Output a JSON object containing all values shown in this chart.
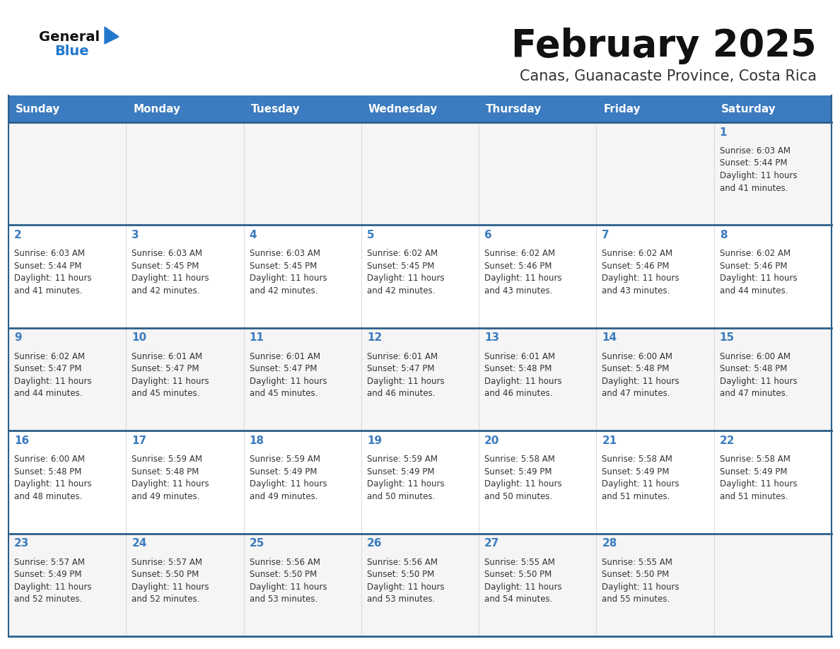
{
  "title": "February 2025",
  "subtitle": "Canas, Guanacaste Province, Costa Rica",
  "days_of_week": [
    "Sunday",
    "Monday",
    "Tuesday",
    "Wednesday",
    "Thursday",
    "Friday",
    "Saturday"
  ],
  "header_bg": "#3b7bbf",
  "header_text": "#ffffff",
  "cell_bg": "#f5f5f5",
  "cell_bg_white": "#ffffff",
  "day_number_color": "#3b7bbf",
  "info_text_color": "#333333",
  "row_separator_color": "#2c5f8a",
  "col_separator_color": "#cccccc",
  "title_color": "#111111",
  "subtitle_color": "#333333",
  "logo_general_color": "#111111",
  "logo_blue_color": "#2277cc",
  "logo_triangle_color": "#2277cc",
  "calendar_data": [
    [
      {
        "day": null,
        "sunrise": null,
        "sunset": null,
        "daylight": null
      },
      {
        "day": null,
        "sunrise": null,
        "sunset": null,
        "daylight": null
      },
      {
        "day": null,
        "sunrise": null,
        "sunset": null,
        "daylight": null
      },
      {
        "day": null,
        "sunrise": null,
        "sunset": null,
        "daylight": null
      },
      {
        "day": null,
        "sunrise": null,
        "sunset": null,
        "daylight": null
      },
      {
        "day": null,
        "sunrise": null,
        "sunset": null,
        "daylight": null
      },
      {
        "day": 1,
        "sunrise": "6:03 AM",
        "sunset": "5:44 PM",
        "daylight": "11 hours and 41 minutes."
      }
    ],
    [
      {
        "day": 2,
        "sunrise": "6:03 AM",
        "sunset": "5:44 PM",
        "daylight": "11 hours and 41 minutes."
      },
      {
        "day": 3,
        "sunrise": "6:03 AM",
        "sunset": "5:45 PM",
        "daylight": "11 hours and 42 minutes."
      },
      {
        "day": 4,
        "sunrise": "6:03 AM",
        "sunset": "5:45 PM",
        "daylight": "11 hours and 42 minutes."
      },
      {
        "day": 5,
        "sunrise": "6:02 AM",
        "sunset": "5:45 PM",
        "daylight": "11 hours and 42 minutes."
      },
      {
        "day": 6,
        "sunrise": "6:02 AM",
        "sunset": "5:46 PM",
        "daylight": "11 hours and 43 minutes."
      },
      {
        "day": 7,
        "sunrise": "6:02 AM",
        "sunset": "5:46 PM",
        "daylight": "11 hours and 43 minutes."
      },
      {
        "day": 8,
        "sunrise": "6:02 AM",
        "sunset": "5:46 PM",
        "daylight": "11 hours and 44 minutes."
      }
    ],
    [
      {
        "day": 9,
        "sunrise": "6:02 AM",
        "sunset": "5:47 PM",
        "daylight": "11 hours and 44 minutes."
      },
      {
        "day": 10,
        "sunrise": "6:01 AM",
        "sunset": "5:47 PM",
        "daylight": "11 hours and 45 minutes."
      },
      {
        "day": 11,
        "sunrise": "6:01 AM",
        "sunset": "5:47 PM",
        "daylight": "11 hours and 45 minutes."
      },
      {
        "day": 12,
        "sunrise": "6:01 AM",
        "sunset": "5:47 PM",
        "daylight": "11 hours and 46 minutes."
      },
      {
        "day": 13,
        "sunrise": "6:01 AM",
        "sunset": "5:48 PM",
        "daylight": "11 hours and 46 minutes."
      },
      {
        "day": 14,
        "sunrise": "6:00 AM",
        "sunset": "5:48 PM",
        "daylight": "11 hours and 47 minutes."
      },
      {
        "day": 15,
        "sunrise": "6:00 AM",
        "sunset": "5:48 PM",
        "daylight": "11 hours and 47 minutes."
      }
    ],
    [
      {
        "day": 16,
        "sunrise": "6:00 AM",
        "sunset": "5:48 PM",
        "daylight": "11 hours and 48 minutes."
      },
      {
        "day": 17,
        "sunrise": "5:59 AM",
        "sunset": "5:48 PM",
        "daylight": "11 hours and 49 minutes."
      },
      {
        "day": 18,
        "sunrise": "5:59 AM",
        "sunset": "5:49 PM",
        "daylight": "11 hours and 49 minutes."
      },
      {
        "day": 19,
        "sunrise": "5:59 AM",
        "sunset": "5:49 PM",
        "daylight": "11 hours and 50 minutes."
      },
      {
        "day": 20,
        "sunrise": "5:58 AM",
        "sunset": "5:49 PM",
        "daylight": "11 hours and 50 minutes."
      },
      {
        "day": 21,
        "sunrise": "5:58 AM",
        "sunset": "5:49 PM",
        "daylight": "11 hours and 51 minutes."
      },
      {
        "day": 22,
        "sunrise": "5:58 AM",
        "sunset": "5:49 PM",
        "daylight": "11 hours and 51 minutes."
      }
    ],
    [
      {
        "day": 23,
        "sunrise": "5:57 AM",
        "sunset": "5:49 PM",
        "daylight": "11 hours and 52 minutes."
      },
      {
        "day": 24,
        "sunrise": "5:57 AM",
        "sunset": "5:50 PM",
        "daylight": "11 hours and 52 minutes."
      },
      {
        "day": 25,
        "sunrise": "5:56 AM",
        "sunset": "5:50 PM",
        "daylight": "11 hours and 53 minutes."
      },
      {
        "day": 26,
        "sunrise": "5:56 AM",
        "sunset": "5:50 PM",
        "daylight": "11 hours and 53 minutes."
      },
      {
        "day": 27,
        "sunrise": "5:55 AM",
        "sunset": "5:50 PM",
        "daylight": "11 hours and 54 minutes."
      },
      {
        "day": 28,
        "sunrise": "5:55 AM",
        "sunset": "5:50 PM",
        "daylight": "11 hours and 55 minutes."
      },
      {
        "day": null,
        "sunrise": null,
        "sunset": null,
        "daylight": null
      }
    ]
  ]
}
